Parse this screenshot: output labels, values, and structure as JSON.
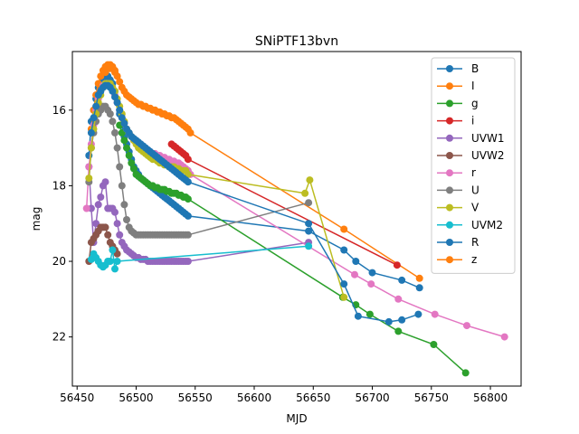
{
  "chart_data": {
    "type": "line",
    "title": "SNiPTF13bvn",
    "xlabel": "MJD",
    "ylabel": "mag",
    "xlim": [
      56446,
      56826
    ],
    "ylim": [
      23.3,
      14.45
    ],
    "y_inverted": true,
    "grid": false,
    "legend_position": "top-right",
    "xticks": [
      56450,
      56500,
      56550,
      56600,
      56650,
      56700,
      56750,
      56800
    ],
    "yticks": [
      16,
      18,
      20,
      22
    ],
    "series": [
      {
        "name": "B",
        "color": "#1f77b4",
        "x": [
          56460,
          56462,
          56464,
          56466,
          56468,
          56470,
          56472,
          56474,
          56476,
          56478,
          56480,
          56482,
          56484,
          56486,
          56488,
          56490,
          56492,
          56494,
          56496,
          56498,
          56500,
          56502,
          56504,
          56506,
          56508,
          56510,
          56512,
          56514,
          56516,
          56518,
          56520,
          56522,
          56524,
          56526,
          56528,
          56530,
          56532,
          56534,
          56536,
          56538,
          56540,
          56542,
          56544,
          56646,
          56676,
          56686,
          56700,
          56725,
          56740
        ],
        "y": [
          17.2,
          16.3,
          16.0,
          15.7,
          15.4,
          15.3,
          15.2,
          15.1,
          15.1,
          15.2,
          15.3,
          15.5,
          15.8,
          16.1,
          16.4,
          16.7,
          16.9,
          17.1,
          17.3,
          17.5,
          17.6,
          17.7,
          17.8,
          17.85,
          17.9,
          17.95,
          18.0,
          18.05,
          18.1,
          18.15,
          18.2,
          18.25,
          18.3,
          18.35,
          18.4,
          18.45,
          18.5,
          18.55,
          18.6,
          18.65,
          18.7,
          18.75,
          18.8,
          19.2,
          19.7,
          20.0,
          20.3,
          20.5,
          20.7
        ]
      },
      {
        "name": "I",
        "color": "#ff7f0e",
        "x": [
          56462,
          56464,
          56466,
          56468,
          56470,
          56472,
          56474,
          56476,
          56478,
          56480,
          56482,
          56484,
          56486,
          56488,
          56490,
          56492,
          56494,
          56496,
          56498,
          56500,
          56502,
          56504,
          56506,
          56508,
          56510,
          56512,
          56514,
          56516,
          56518,
          56520,
          56522,
          56524,
          56526,
          56528,
          56530,
          56532,
          56534,
          56536,
          56538,
          56540,
          56542,
          56544,
          56546,
          56676,
          56740
        ],
        "y": [
          16.5,
          16.0,
          15.6,
          15.3,
          15.1,
          14.95,
          14.85,
          14.8,
          14.8,
          14.85,
          14.95,
          15.1,
          15.25,
          15.4,
          15.5,
          15.6,
          15.65,
          15.7,
          15.75,
          15.8,
          15.85,
          15.85,
          15.9,
          15.9,
          15.95,
          15.95,
          16.0,
          16.0,
          16.05,
          16.05,
          16.1,
          16.1,
          16.15,
          16.15,
          16.2,
          16.2,
          16.25,
          16.3,
          16.35,
          16.4,
          16.45,
          16.5,
          16.6,
          19.15,
          20.45
        ]
      },
      {
        "name": "g",
        "color": "#2ca02c",
        "x": [
          56486,
          56488,
          56490,
          56492,
          56494,
          56496,
          56498,
          56500,
          56502,
          56504,
          56506,
          56508,
          56510,
          56512,
          56514,
          56516,
          56518,
          56520,
          56522,
          56524,
          56526,
          56528,
          56530,
          56532,
          56534,
          56536,
          56538,
          56540,
          56542,
          56544,
          56675,
          56686,
          56698,
          56722,
          56752,
          56779
        ],
        "y": [
          16.4,
          16.6,
          16.8,
          17.0,
          17.2,
          17.4,
          17.55,
          17.7,
          17.75,
          17.8,
          17.85,
          17.9,
          17.95,
          18.0,
          18.0,
          18.05,
          18.05,
          18.1,
          18.1,
          18.1,
          18.15,
          18.15,
          18.2,
          18.2,
          18.2,
          18.25,
          18.25,
          18.3,
          18.3,
          18.35,
          20.95,
          21.15,
          21.4,
          21.85,
          22.2,
          22.95
        ]
      },
      {
        "name": "i",
        "color": "#d62728",
        "x": [
          56530,
          56532,
          56534,
          56536,
          56538,
          56540,
          56542,
          56544,
          56721
        ],
        "y": [
          16.9,
          16.95,
          17.0,
          17.05,
          17.1,
          17.15,
          17.2,
          17.3,
          20.1
        ]
      },
      {
        "name": "UVW1",
        "color": "#9467bd",
        "x": [
          56460,
          56462,
          56464,
          56466,
          56468,
          56470,
          56472,
          56474,
          56476,
          56478,
          56480,
          56482,
          56484,
          56486,
          56488,
          56490,
          56492,
          56494,
          56496,
          56498,
          56500,
          56502,
          56504,
          56506,
          56508,
          56510,
          56512,
          56514,
          56516,
          56518,
          56520,
          56522,
          56524,
          56526,
          56528,
          56530,
          56532,
          56534,
          56536,
          56538,
          56540,
          56542,
          56544,
          56646
        ],
        "y": [
          17.5,
          18.6,
          19.5,
          19.0,
          18.5,
          18.3,
          18.0,
          17.9,
          18.6,
          18.6,
          18.6,
          18.7,
          19.0,
          19.3,
          19.5,
          19.6,
          19.7,
          19.75,
          19.8,
          19.85,
          19.9,
          19.9,
          19.95,
          19.95,
          19.95,
          20.0,
          20.0,
          20.0,
          20.0,
          20.0,
          20.0,
          20.0,
          20.0,
          20.0,
          20.0,
          20.0,
          20.0,
          20.0,
          20.0,
          20.0,
          20.0,
          20.0,
          20.0,
          19.5
        ]
      },
      {
        "name": "UVW2",
        "color": "#8c564b",
        "x": [
          56460,
          56462,
          56464,
          56466,
          56468,
          56470,
          56472,
          56474,
          56476,
          56478,
          56480,
          56482,
          56484
        ],
        "y": [
          20.0,
          19.5,
          19.4,
          19.3,
          19.2,
          19.1,
          19.1,
          19.1,
          19.3,
          19.5,
          19.6,
          19.7,
          19.8
        ]
      },
      {
        "name": "r",
        "color": "#e377c2",
        "x": [
          56458,
          56460,
          56462,
          56464,
          56466,
          56468,
          56470,
          56472,
          56474,
          56476,
          56478,
          56480,
          56482,
          56484,
          56486,
          56488,
          56490,
          56492,
          56494,
          56496,
          56498,
          56500,
          56502,
          56504,
          56506,
          56508,
          56510,
          56512,
          56514,
          56516,
          56518,
          56520,
          56522,
          56524,
          56526,
          56528,
          56530,
          56532,
          56534,
          56536,
          56538,
          56540,
          56542,
          56544,
          56546,
          56685,
          56699,
          56722,
          56753,
          56780,
          56812
        ],
        "y": [
          18.6,
          17.5,
          16.9,
          16.4,
          16.0,
          15.7,
          15.5,
          15.35,
          15.3,
          15.3,
          15.35,
          15.45,
          15.6,
          15.8,
          16.0,
          16.2,
          16.35,
          16.5,
          16.6,
          16.7,
          16.8,
          16.85,
          16.9,
          16.95,
          17.0,
          17.05,
          17.1,
          17.1,
          17.15,
          17.15,
          17.2,
          17.2,
          17.25,
          17.25,
          17.3,
          17.3,
          17.35,
          17.35,
          17.4,
          17.4,
          17.45,
          17.5,
          17.55,
          17.6,
          17.7,
          20.35,
          20.6,
          21.0,
          21.4,
          21.7,
          22.0
        ]
      },
      {
        "name": "U",
        "color": "#7f7f7f",
        "x": [
          56460,
          56462,
          56464,
          56466,
          56468,
          56470,
          56472,
          56474,
          56476,
          56478,
          56480,
          56482,
          56484,
          56486,
          56488,
          56490,
          56492,
          56494,
          56496,
          56498,
          56500,
          56502,
          56504,
          56506,
          56508,
          56510,
          56512,
          56514,
          56516,
          56518,
          56520,
          56522,
          56524,
          56526,
          56528,
          56530,
          56532,
          56534,
          56536,
          56538,
          56540,
          56542,
          56544,
          56646
        ],
        "y": [
          17.9,
          17.0,
          16.6,
          16.3,
          16.1,
          16.0,
          15.9,
          15.9,
          16.0,
          16.1,
          16.3,
          16.6,
          17.0,
          17.5,
          18.0,
          18.5,
          18.9,
          19.1,
          19.2,
          19.25,
          19.3,
          19.3,
          19.3,
          19.3,
          19.3,
          19.3,
          19.3,
          19.3,
          19.3,
          19.3,
          19.3,
          19.3,
          19.3,
          19.3,
          19.3,
          19.3,
          19.3,
          19.3,
          19.3,
          19.3,
          19.3,
          19.3,
          19.3,
          18.45
        ]
      },
      {
        "name": "V",
        "color": "#bcbd22",
        "x": [
          56460,
          56462,
          56464,
          56466,
          56468,
          56470,
          56472,
          56474,
          56476,
          56478,
          56480,
          56482,
          56484,
          56486,
          56488,
          56490,
          56492,
          56494,
          56496,
          56498,
          56500,
          56502,
          56504,
          56506,
          56508,
          56510,
          56512,
          56514,
          56516,
          56518,
          56520,
          56522,
          56524,
          56526,
          56528,
          56530,
          56532,
          56534,
          56536,
          56538,
          56540,
          56542,
          56544,
          56643,
          56647,
          56676
        ],
        "y": [
          17.8,
          17.0,
          16.5,
          16.1,
          15.8,
          15.6,
          15.4,
          15.3,
          15.3,
          15.3,
          15.4,
          15.5,
          15.7,
          15.9,
          16.1,
          16.3,
          16.5,
          16.6,
          16.7,
          16.8,
          16.9,
          17.0,
          17.05,
          17.1,
          17.15,
          17.2,
          17.25,
          17.3,
          17.3,
          17.35,
          17.4,
          17.4,
          17.45,
          17.45,
          17.5,
          17.5,
          17.5,
          17.55,
          17.55,
          17.6,
          17.6,
          17.6,
          17.7,
          18.2,
          17.85,
          20.95
        ]
      },
      {
        "name": "UVM2",
        "color": "#17becf",
        "x": [
          56462,
          56464,
          56466,
          56468,
          56470,
          56472,
          56474,
          56476,
          56478,
          56480,
          56482,
          56484,
          56646
        ],
        "y": [
          19.95,
          19.8,
          19.9,
          20.0,
          20.1,
          20.15,
          20.1,
          20.0,
          20.0,
          19.7,
          20.2,
          20.0,
          19.6
        ]
      },
      {
        "name": "R",
        "color": "#1f77b4",
        "x": [
          56462,
          56464,
          56466,
          56468,
          56470,
          56472,
          56474,
          56476,
          56478,
          56480,
          56482,
          56484,
          56486,
          56488,
          56490,
          56492,
          56494,
          56496,
          56498,
          56500,
          56502,
          56504,
          56506,
          56508,
          56510,
          56512,
          56514,
          56516,
          56518,
          56520,
          56522,
          56524,
          56526,
          56528,
          56530,
          56532,
          56534,
          56536,
          56538,
          56540,
          56542,
          56544,
          56646,
          56676,
          56688,
          56714,
          56725,
          56739
        ],
        "y": [
          16.6,
          16.2,
          15.9,
          15.6,
          15.5,
          15.4,
          15.35,
          15.35,
          15.4,
          15.5,
          15.65,
          15.8,
          16.0,
          16.2,
          16.35,
          16.5,
          16.6,
          16.7,
          16.75,
          16.8,
          16.85,
          16.9,
          16.95,
          17.0,
          17.05,
          17.1,
          17.15,
          17.2,
          17.25,
          17.3,
          17.35,
          17.4,
          17.45,
          17.5,
          17.55,
          17.6,
          17.65,
          17.7,
          17.75,
          17.8,
          17.85,
          17.9,
          19.0,
          20.6,
          21.45,
          21.6,
          21.55,
          21.4
        ]
      },
      {
        "name": "z",
        "color": "#ff7f0e",
        "x": [
          56474,
          56478,
          56482
        ],
        "y": [
          15.0,
          14.9,
          15.0
        ]
      }
    ]
  }
}
